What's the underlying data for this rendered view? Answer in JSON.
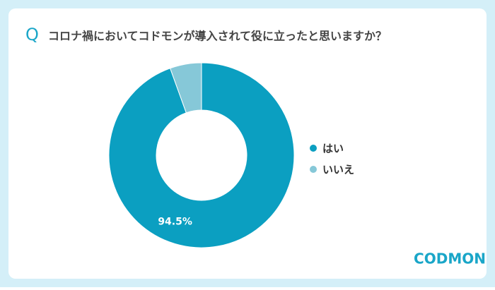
{
  "chart_data": {
    "type": "pie",
    "title_prefix": "Q",
    "title": "コロナ禍においてコドモンが導入されて役に立ったと思いますか？",
    "categories": [
      "はい",
      "いいえ"
    ],
    "values": [
      94.5,
      5.5
    ],
    "value_labels": [
      "94.5%",
      null
    ],
    "colors": [
      "#0b9fc1",
      "#86c8d8"
    ],
    "donut": true,
    "legend": "right",
    "logo": "CODMON"
  }
}
